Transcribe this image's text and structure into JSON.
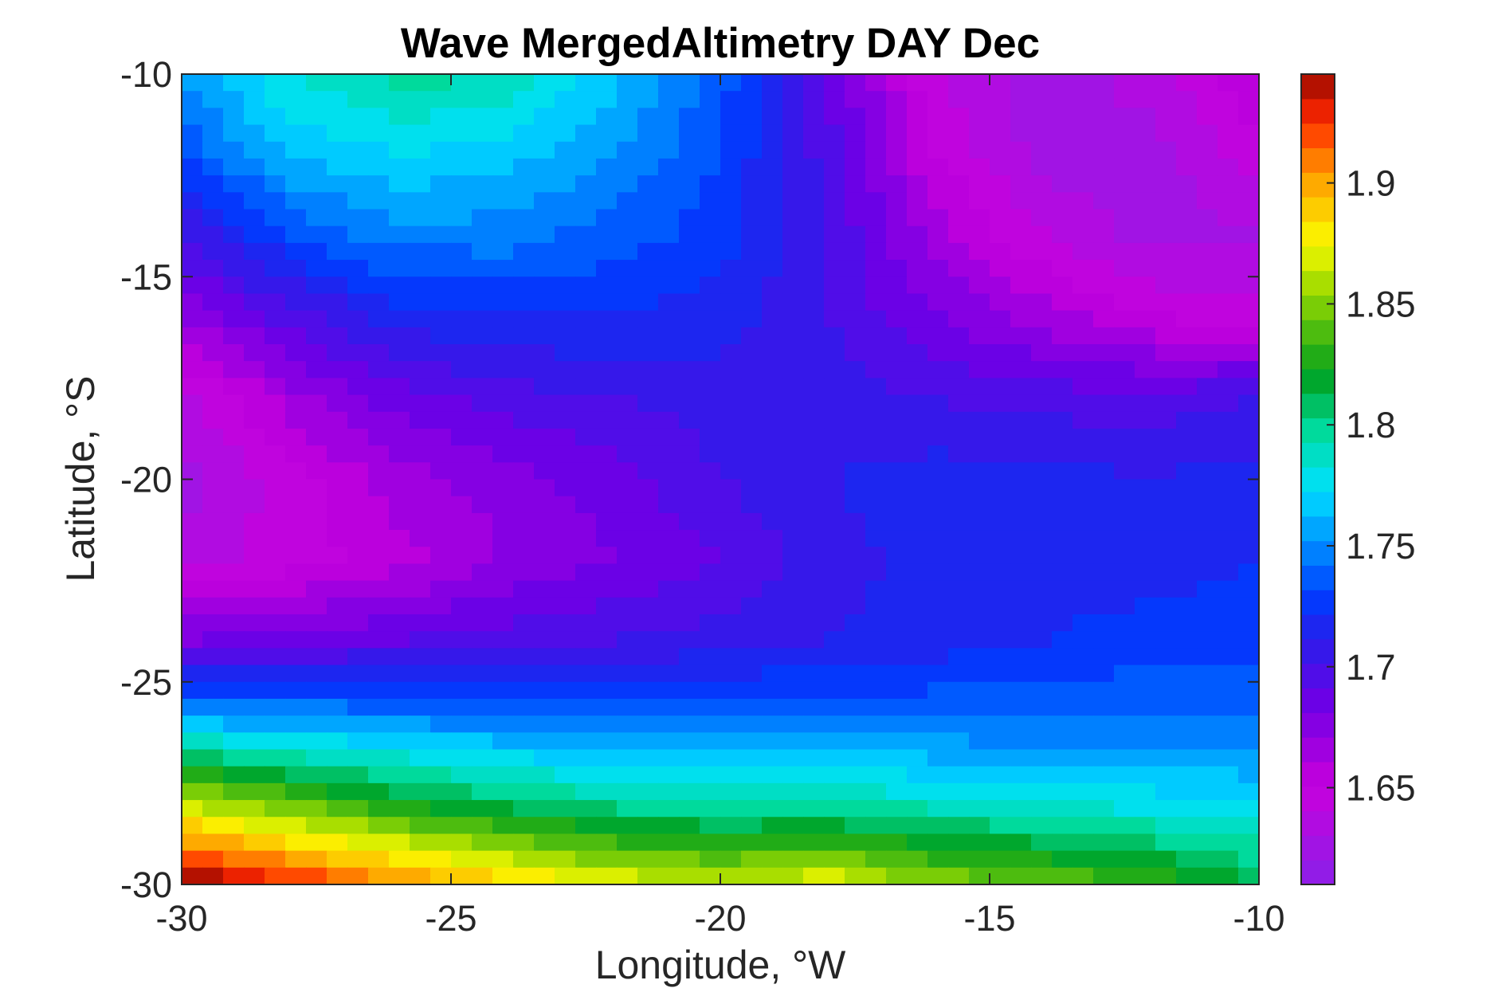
{
  "chart_data": {
    "type": "heatmap",
    "subtype": "filled-contour",
    "title": "Wave MergedAltimetry DAY Dec",
    "xlabel": "Longitude, °W",
    "ylabel": "Latitude, °S",
    "xlim": [
      -30,
      -10
    ],
    "ylim": [
      -30,
      -10
    ],
    "x_ticks": [
      -30,
      -25,
      -20,
      -15,
      -10
    ],
    "x_tick_labels": [
      "-30",
      "-25",
      "-20",
      "-15",
      "-10"
    ],
    "y_ticks": [
      -10,
      -15,
      -20,
      -25,
      -30
    ],
    "y_tick_labels": [
      "-10",
      "-15",
      "-20",
      "-25",
      "-30"
    ],
    "colorbar": {
      "range": [
        1.61,
        1.945
      ],
      "ticks": [
        1.65,
        1.7,
        1.75,
        1.8,
        1.85,
        1.9
      ],
      "tick_labels": [
        "1.65",
        "1.7",
        "1.75",
        "1.8",
        "1.85",
        "1.9"
      ],
      "colormap": "jet-like (violet-blue-cyan-green-yellow-red)",
      "location": "right"
    },
    "x": [
      -30,
      -28,
      -26,
      -24,
      -22,
      -20,
      -18,
      -16,
      -14,
      -12,
      -10
    ],
    "y": [
      -10,
      -12,
      -14,
      -16,
      -18,
      -20,
      -22,
      -24,
      -26,
      -28,
      -30
    ],
    "z": [
      [
        1.755,
        1.78,
        1.795,
        1.79,
        1.765,
        1.735,
        1.69,
        1.64,
        1.625,
        1.635,
        1.66
      ],
      [
        1.73,
        1.76,
        1.77,
        1.765,
        1.75,
        1.73,
        1.695,
        1.65,
        1.625,
        1.625,
        1.645
      ],
      [
        1.7,
        1.73,
        1.745,
        1.745,
        1.735,
        1.725,
        1.7,
        1.665,
        1.64,
        1.625,
        1.63
      ],
      [
        1.67,
        1.695,
        1.715,
        1.72,
        1.72,
        1.715,
        1.7,
        1.68,
        1.665,
        1.65,
        1.645
      ],
      [
        1.635,
        1.665,
        1.685,
        1.695,
        1.7,
        1.705,
        1.705,
        1.7,
        1.695,
        1.695,
        1.7
      ],
      [
        1.625,
        1.645,
        1.665,
        1.675,
        1.685,
        1.7,
        1.71,
        1.715,
        1.715,
        1.71,
        1.715
      ],
      [
        1.635,
        1.645,
        1.655,
        1.67,
        1.68,
        1.69,
        1.705,
        1.715,
        1.715,
        1.715,
        1.72
      ],
      [
        1.68,
        1.685,
        1.69,
        1.695,
        1.7,
        1.705,
        1.71,
        1.715,
        1.72,
        1.725,
        1.725
      ],
      [
        1.76,
        1.755,
        1.75,
        1.745,
        1.74,
        1.74,
        1.74,
        1.74,
        1.74,
        1.74,
        1.74
      ],
      [
        1.86,
        1.84,
        1.82,
        1.805,
        1.795,
        1.79,
        1.79,
        1.785,
        1.78,
        1.775,
        1.77
      ],
      [
        1.945,
        1.925,
        1.905,
        1.885,
        1.87,
        1.86,
        1.87,
        1.85,
        1.84,
        1.83,
        1.81
      ]
    ]
  }
}
